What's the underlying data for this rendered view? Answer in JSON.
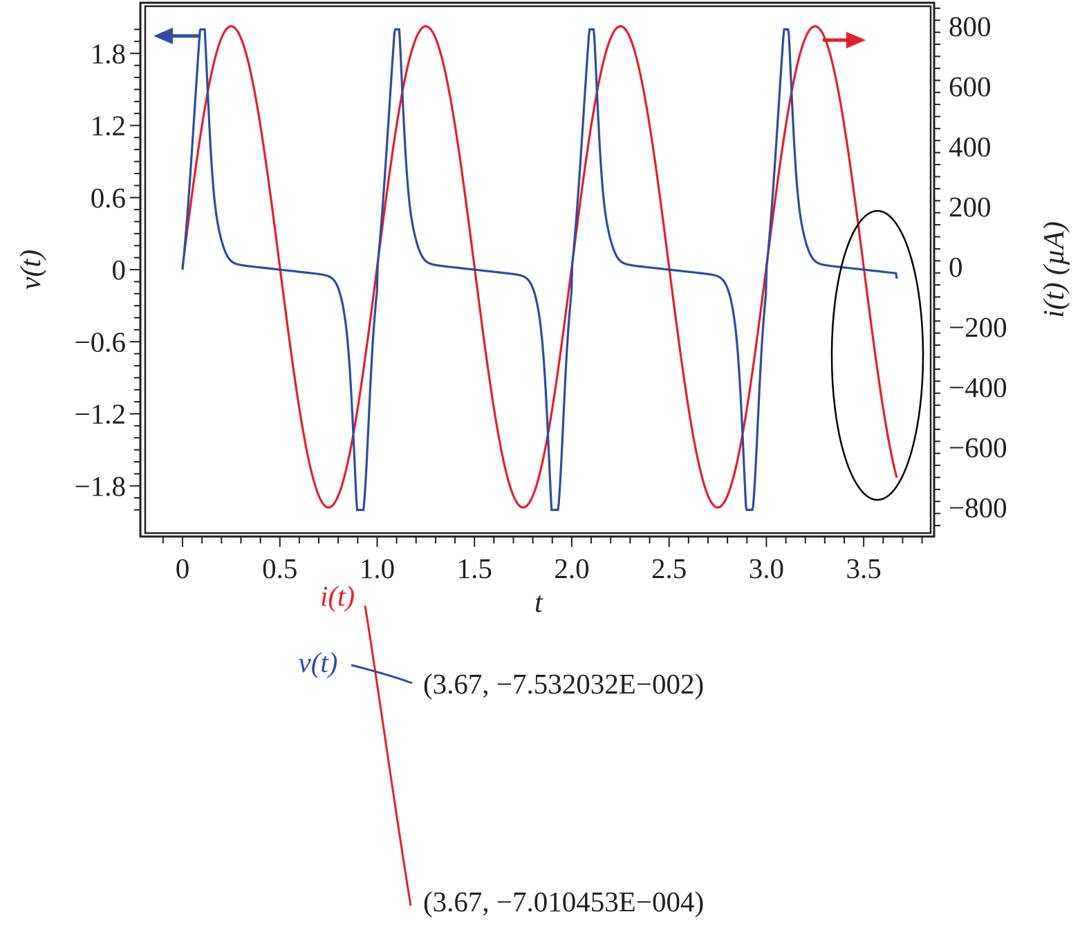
{
  "colors": {
    "voltage": "#2e4da0",
    "current": "#e2202c",
    "axis": "#231f20",
    "ellipse": "#000000"
  },
  "chart_data": {
    "type": "line",
    "title": "",
    "xlabel": "t",
    "ylabel_left": "v(t)",
    "ylabel_right": "i(t) (µA)",
    "xlim": [
      -0.2,
      3.85
    ],
    "ylim_left": [
      -2.07,
      2.07
    ],
    "ylim_right": [
      -900,
      890
    ],
    "x_ticks": [
      "0",
      "0.5",
      "1.0",
      "1.5",
      "2.0",
      "2.5",
      "3.0",
      "3.5"
    ],
    "y_ticks_left": [
      "1.8",
      "1.2",
      "0.6",
      "0",
      "−0.6",
      "−1.2",
      "−1.8"
    ],
    "y_ticks_right": [
      "800",
      "600",
      "400",
      "200",
      "0",
      "−200",
      "−400",
      "−600",
      "−800"
    ],
    "grid": false,
    "series": [
      {
        "name": "v(t)",
        "axis": "left",
        "description_points": {
          "x": [
            0,
            0.09,
            0.18,
            0.3,
            0.5,
            0.72,
            0.84,
            0.92,
            1.0,
            1.09,
            1.18,
            1.3,
            1.5,
            1.72,
            1.84,
            1.92,
            2.0,
            2.09,
            2.18,
            2.3,
            2.5,
            2.72,
            2.84,
            2.92,
            3.0,
            3.09,
            3.18,
            3.3,
            3.5,
            3.67
          ],
          "y": [
            0,
            2.0,
            0.35,
            0.08,
            0.0,
            -0.08,
            -0.35,
            -2.0,
            0,
            2.0,
            0.35,
            0.08,
            0.0,
            -0.08,
            -0.35,
            -2.0,
            0,
            2.0,
            0.35,
            0.08,
            0.0,
            -0.08,
            -0.35,
            -2.0,
            0,
            2.0,
            0.35,
            0.08,
            0.0,
            -0.0753
          ]
        }
      },
      {
        "name": "i(t)",
        "axis": "right",
        "description_points": {
          "x": [
            0,
            0.25,
            0.5,
            0.75,
            1.0,
            1.25,
            1.5,
            1.75,
            2.0,
            2.25,
            2.5,
            2.75,
            3.0,
            3.25,
            3.5,
            3.67
          ],
          "y": [
            0,
            800,
            0,
            -800,
            0,
            800,
            0,
            -800,
            0,
            800,
            0,
            -800,
            0,
            800,
            0,
            -701
          ]
        }
      }
    ],
    "annotations": [
      {
        "label": "i(t)",
        "value": "(3.67, −7.010453E−004)"
      },
      {
        "label": "v(t)",
        "value": "(3.67, −7.532032E−002)"
      }
    ]
  }
}
